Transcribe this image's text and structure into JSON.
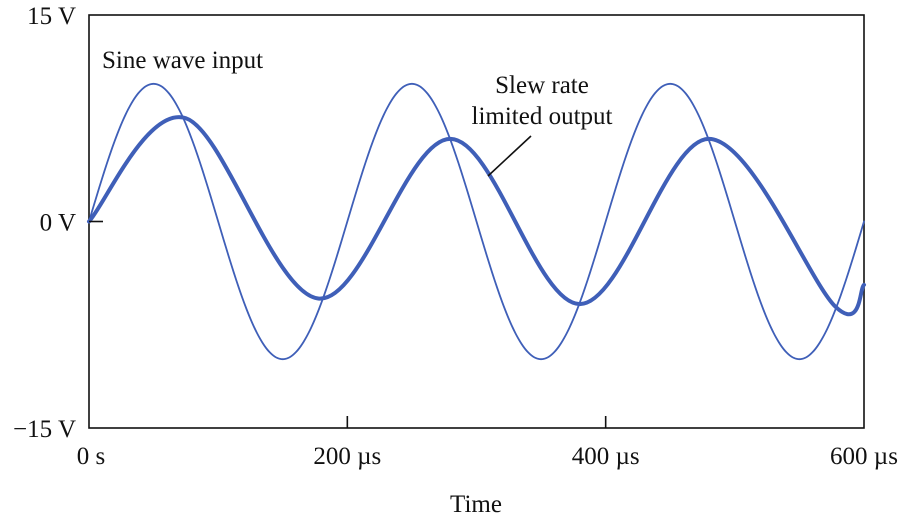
{
  "chart_data": {
    "type": "line",
    "title": "",
    "xlabel": "Time",
    "ylabel": "",
    "xlim": [
      0,
      600
    ],
    "ylim": [
      -15,
      15
    ],
    "x_ticks": [
      0,
      200,
      400,
      600
    ],
    "x_tick_labels": [
      "0 s",
      "200 µs",
      "400 µs",
      "600 µs"
    ],
    "y_ticks": [
      -15,
      0,
      15
    ],
    "y_tick_labels": [
      "−15 V",
      "0 V",
      "15 V"
    ],
    "grid": false,
    "series": [
      {
        "name": "Sine wave input",
        "style": "thin",
        "color": "#3f5fb8",
        "amplitude": 10,
        "period": 200,
        "x": [
          0,
          25,
          50,
          75,
          100,
          125,
          150,
          175,
          200,
          225,
          250,
          275,
          300,
          325,
          350,
          375,
          400,
          425,
          450,
          475,
          500,
          525,
          550,
          575,
          600
        ],
        "values": [
          0,
          7.1,
          10,
          7.1,
          0,
          -7.1,
          -10,
          -7.1,
          0,
          7.1,
          10,
          7.1,
          0,
          -7.1,
          -10,
          -7.1,
          0,
          7.1,
          10,
          7.1,
          0,
          -7.1,
          -10,
          -7.1,
          0
        ]
      },
      {
        "name": "Slew rate limited output",
        "style": "thick",
        "color": "#3f5fb8",
        "x": [
          0,
          75,
          178,
          280,
          380,
          480,
          578,
          600
        ],
        "values": [
          0,
          7.5,
          -5.6,
          6.0,
          -6.0,
          6.0,
          -6.2,
          -4.6
        ]
      }
    ],
    "annotations": [
      {
        "text": "Sine wave input"
      },
      {
        "lines": [
          "Slew rate",
          "limited output"
        ]
      }
    ]
  }
}
